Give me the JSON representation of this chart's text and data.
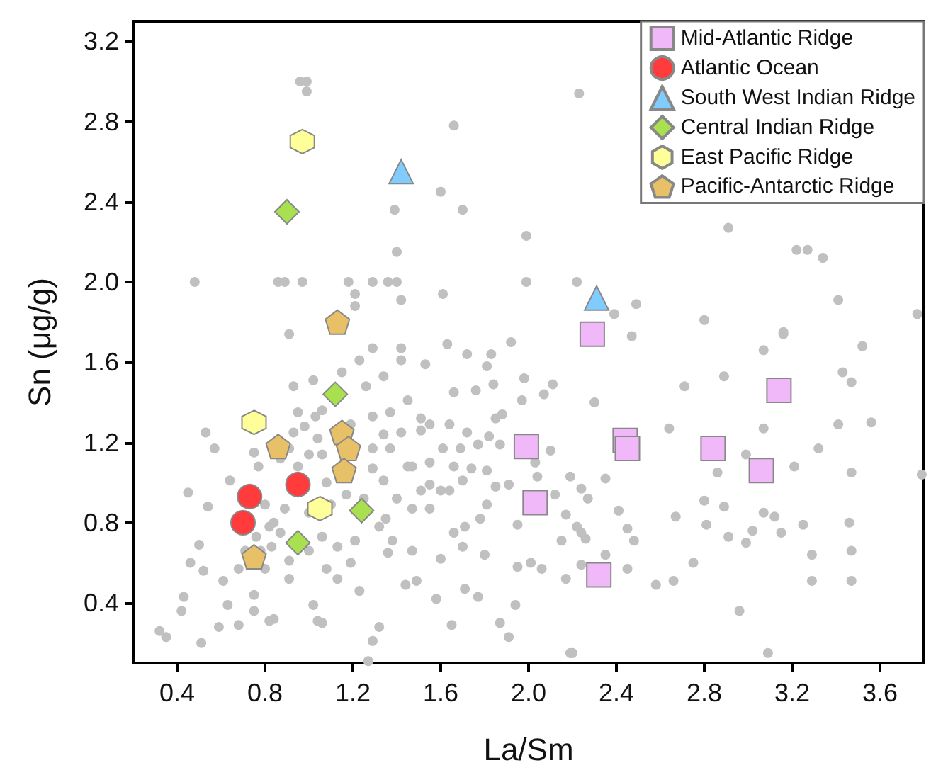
{
  "chart_data": {
    "type": "scatter",
    "xlabel": "La/Sm",
    "ylabel": "Sn (μg/g)",
    "xlim": [
      0.2,
      3.8
    ],
    "ylim": [
      0.1,
      3.3
    ],
    "xticks": [
      0.4,
      0.8,
      1.2,
      1.6,
      {
        "value": 2,
        "label": "2.0"
      },
      2.4,
      2.8,
      3.2,
      3.6
    ],
    "yticks": [
      0.4,
      0.8,
      1.2,
      1.6,
      {
        "value": 2,
        "label": "2.0"
      },
      2.4,
      2.8,
      3.2
    ],
    "grid": false,
    "legend": "top right",
    "series": [
      {
        "color": "#c0c0c0",
        "marker": "circle",
        "x": [
          0.96,
          0.99,
          0.99,
          2.23,
          1.66,
          1.6,
          1.39,
          1.7,
          1.99,
          1.4,
          0.48,
          0.86,
          0.89,
          0.97,
          1.18,
          1.29,
          1.36,
          1.4,
          1.99,
          2.22,
          1.21,
          1.42,
          1.61,
          1.21,
          0.91,
          2.91,
          3.22,
          3.27,
          3.34,
          2.49,
          2.39,
          2.8,
          3.41,
          3.77,
          3.16,
          2.47,
          3.16,
          3.52,
          3.07,
          3.43,
          3.47,
          2.89,
          2.71,
          2.3,
          3.41,
          3.56,
          2.64,
          3.07,
          3.32,
          2.99,
          3.21,
          3.47,
          3.79,
          2.86,
          2.35,
          2.24,
          2.8,
          2.89,
          2.67,
          2.81,
          3.07,
          3.12,
          3.25,
          3.46,
          3.02,
          2.91,
          2.99,
          3.15,
          2.45,
          2.48,
          2.75,
          3.29,
          3.47,
          3.29,
          3.47,
          2.58,
          2.66,
          2.96,
          3.09,
          2.2,
          2.41,
          2.26,
          2.35,
          2.45,
          0.32,
          0.35,
          0.51,
          0.42,
          0.43,
          0.46,
          0.5,
          0.54,
          0.45,
          0.53,
          0.57,
          0.64,
          0.52,
          0.61,
          0.63,
          0.68,
          0.59,
          0.75,
          0.82,
          0.84,
          1.04,
          1.06,
          1.29,
          1.32,
          1.27,
          1.23,
          1.02,
          0.91,
          0.75,
          0.78,
          0.83,
          0.87,
          0.82,
          1.13,
          1.19,
          1.08,
          1.13,
          1.21,
          1.32,
          1.35,
          1.38,
          1.36,
          1.47,
          1.44,
          1.49,
          1.58,
          1.65,
          1.71,
          1.77,
          1.87,
          1.91,
          1.94,
          2.19,
          1.6,
          1.7,
          1.8,
          1.95,
          2.01,
          2.06,
          2.17,
          2.24,
          2.15,
          2.22,
          2.12,
          2.04,
          1.85,
          1.91,
          1.95,
          1.78,
          1.71,
          1.66,
          1.55,
          1.51,
          1.6,
          1.47,
          1.55,
          1.66,
          1.74,
          1.81,
          1.61,
          1.69,
          1.77,
          1.87,
          1.72,
          1.82,
          1.64,
          1.55,
          1.51,
          1.42,
          1.37,
          1.29,
          1.29,
          1.34,
          1.4,
          1.47,
          1.25,
          1.17,
          1.08,
          1.1,
          1.0,
          0.89,
          0.84,
          0.76,
          0.71,
          0.68,
          0.8,
          0.91,
          1.0,
          1.06,
          0.8,
          0.77,
          0.75,
          0.87,
          0.95,
          0.91,
          0.93,
          0.98,
          0.95,
          1.03,
          1.06,
          0.93,
          1.02,
          1.15,
          1.29,
          1.42,
          1.42,
          1.53,
          1.63,
          1.72,
          1.83,
          1.92,
          1.81,
          1.98,
          2.11,
          2.07,
          1.97,
          1.23,
          1.26,
          1.34,
          1.45,
          1.37,
          1.51,
          1.66,
          1.76,
          1.84,
          1.85,
          1.88,
          1.29,
          1.19,
          1.04,
          1.0,
          1.06,
          1.34,
          1.45,
          1.55,
          1.64,
          1.7,
          1.81,
          2.17,
          2.24,
          2.27,
          2.19,
          2.1,
          2.03
        ],
        "values": [
          3.0,
          3.0,
          2.95,
          2.94,
          2.78,
          2.45,
          2.36,
          2.36,
          2.23,
          2.15,
          2.0,
          2.0,
          2.0,
          2.0,
          2.0,
          2.0,
          2.0,
          2.0,
          2.0,
          2.0,
          1.94,
          1.91,
          1.94,
          1.88,
          1.74,
          2.27,
          2.16,
          2.16,
          2.12,
          1.89,
          1.84,
          1.81,
          1.91,
          1.84,
          1.75,
          1.73,
          1.74,
          1.68,
          1.66,
          1.55,
          1.5,
          1.53,
          1.48,
          1.4,
          1.29,
          1.3,
          1.27,
          1.27,
          1.17,
          1.14,
          1.08,
          1.05,
          1.04,
          1.05,
          1.02,
          0.97,
          0.91,
          0.88,
          0.83,
          0.79,
          0.85,
          0.83,
          0.79,
          0.8,
          0.76,
          0.73,
          0.7,
          0.75,
          0.77,
          0.71,
          0.6,
          0.64,
          0.66,
          0.51,
          0.51,
          0.49,
          0.51,
          0.36,
          0.15,
          0.15,
          0.86,
          0.72,
          0.64,
          0.57,
          0.26,
          0.23,
          0.2,
          0.36,
          0.43,
          0.6,
          0.69,
          0.88,
          0.95,
          1.25,
          1.17,
          1.01,
          0.56,
          0.51,
          0.39,
          0.29,
          0.28,
          0.36,
          0.31,
          0.32,
          0.31,
          0.3,
          0.21,
          0.28,
          0.11,
          0.46,
          0.39,
          0.52,
          0.44,
          0.66,
          0.68,
          0.75,
          0.78,
          0.52,
          0.6,
          0.57,
          0.68,
          0.71,
          0.78,
          0.82,
          0.71,
          0.65,
          0.66,
          0.49,
          0.51,
          0.42,
          0.29,
          0.47,
          0.43,
          0.3,
          0.23,
          0.39,
          0.15,
          0.62,
          0.68,
          0.64,
          0.58,
          0.6,
          0.57,
          0.52,
          0.59,
          0.71,
          0.78,
          0.94,
          1.03,
          0.98,
          0.99,
          0.79,
          0.82,
          0.78,
          0.75,
          0.87,
          0.96,
          0.96,
          1.08,
          1.1,
          1.08,
          1.07,
          1.06,
          1.17,
          1.17,
          1.19,
          1.19,
          1.25,
          1.23,
          1.29,
          1.29,
          1.26,
          1.25,
          1.17,
          1.17,
          1.07,
          1.01,
          0.92,
          0.87,
          0.92,
          0.94,
          1.0,
          0.89,
          0.85,
          0.87,
          0.8,
          0.73,
          0.66,
          0.57,
          0.57,
          0.61,
          0.66,
          0.73,
          0.89,
          1.08,
          1.15,
          1.12,
          1.08,
          1.17,
          1.25,
          1.28,
          1.35,
          1.33,
          1.36,
          1.48,
          1.51,
          1.55,
          1.67,
          1.67,
          1.61,
          1.59,
          1.69,
          1.64,
          1.64,
          1.7,
          1.58,
          1.52,
          1.49,
          1.44,
          1.41,
          1.61,
          1.48,
          1.53,
          1.41,
          1.35,
          1.32,
          1.45,
          1.46,
          1.49,
          1.32,
          1.34,
          1.33,
          1.29,
          1.22,
          1.14,
          1.14,
          1.24,
          1.08,
          0.99,
          0.96,
          1.01,
          0.89,
          0.84,
          0.75,
          0.92,
          1.03,
          1.16,
          1.1
        ]
      },
      {
        "name": "Mid-Atlantic Ridge",
        "color": "#f0b8f8",
        "marker": "square",
        "x": [
          1.99,
          2.03,
          2.29,
          2.44,
          2.45,
          2.84,
          3.14,
          3.06,
          2.32
        ],
        "values": [
          1.18,
          0.9,
          1.74,
          1.21,
          1.17,
          1.17,
          1.46,
          1.06,
          0.54
        ]
      },
      {
        "name": "Atlantic Ocean",
        "color": "#ff3b3b",
        "marker": "circle",
        "x": [
          0.73,
          0.7,
          0.95
        ],
        "values": [
          0.93,
          0.8,
          0.99
        ]
      },
      {
        "name": "South West Indian Ridge",
        "color": "#80ccff",
        "marker": "triangle",
        "x": [
          1.42,
          2.31
        ],
        "values": [
          2.55,
          1.92
        ]
      },
      {
        "name": "Central Indian Ridge",
        "color": "#a8e050",
        "marker": "diamond",
        "x": [
          0.9,
          1.12,
          1.24,
          0.95
        ],
        "values": [
          2.35,
          1.44,
          0.86,
          0.7
        ]
      },
      {
        "name": "East Pacific Ridge",
        "color": "#ffff99",
        "x": [
          0.97,
          0.75,
          1.05
        ],
        "values": [
          2.7,
          1.3,
          0.87
        ]
      },
      {
        "name": "Pacific-Antarctic Ridge",
        "color": "#e8c068",
        "x": [
          1.13,
          0.86,
          1.15,
          1.18,
          1.16,
          0.75
        ],
        "values": [
          1.8,
          1.18,
          1.25,
          1.17,
          1.06,
          0.63
        ]
      }
    ]
  }
}
